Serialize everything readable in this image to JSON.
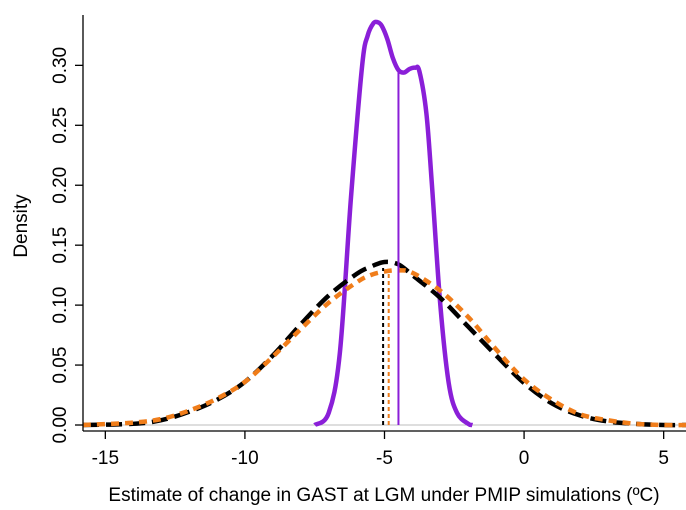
{
  "chart_data": {
    "type": "line",
    "xlabel": "Estimate of change in GAST at LGM under PMIP simulations (ºC)",
    "ylabel": "Density",
    "xlim": [
      -15.8,
      5.8
    ],
    "ylim": [
      -0.005,
      0.342
    ],
    "x_ticks": [
      -15,
      -10,
      -5,
      0,
      5
    ],
    "x_tick_labels": [
      "-15",
      "-10",
      "-5",
      "0",
      "5"
    ],
    "y_ticks": [
      0.0,
      0.05,
      0.1,
      0.15,
      0.2,
      0.25,
      0.3
    ],
    "y_tick_labels": [
      "0.00",
      "0.05",
      "0.10",
      "0.15",
      "0.20",
      "0.25",
      "0.30"
    ],
    "grid": false,
    "legend": "none",
    "series": [
      {
        "color": "#8a1fd8",
        "style": "solid",
        "x": [
          -7.5,
          -7.0,
          -6.6,
          -6.2,
          -5.8,
          -5.6,
          -5.4,
          -5.25,
          -5.1,
          -4.9,
          -4.7,
          -4.5,
          -4.3,
          -4.1,
          -3.9,
          -3.75,
          -3.5,
          -3.3,
          -3.0,
          -2.7,
          -2.4,
          -2.0,
          -1.85
        ],
        "values": [
          0.0,
          0.01,
          0.06,
          0.19,
          0.3,
          0.325,
          0.335,
          0.336,
          0.333,
          0.322,
          0.306,
          0.296,
          0.294,
          0.297,
          0.298,
          0.295,
          0.26,
          0.2,
          0.1,
          0.035,
          0.01,
          0.001,
          0.0
        ]
      },
      {
        "color": "#000000",
        "style": "dashed",
        "x": [
          -15.8,
          -14.0,
          -13.0,
          -12.0,
          -11.0,
          -10.0,
          -9.0,
          -8.0,
          -7.0,
          -6.0,
          -5.5,
          -5.0,
          -4.5,
          -4.0,
          -3.0,
          -2.0,
          -1.0,
          0.0,
          1.0,
          2.0,
          3.0,
          4.0,
          5.0,
          5.8
        ],
        "values": [
          0.0,
          0.001,
          0.004,
          0.011,
          0.021,
          0.036,
          0.058,
          0.084,
          0.108,
          0.126,
          0.132,
          0.136,
          0.134,
          0.125,
          0.106,
          0.082,
          0.058,
          0.035,
          0.018,
          0.008,
          0.003,
          0.001,
          0.0,
          0.0
        ]
      },
      {
        "color": "#f07d1a",
        "style": "dashed",
        "x": [
          -15.8,
          -14.0,
          -13.0,
          -12.0,
          -11.0,
          -10.0,
          -9.0,
          -8.0,
          -7.0,
          -6.0,
          -5.5,
          -5.0,
          -4.5,
          -4.0,
          -3.0,
          -2.0,
          -1.0,
          0.0,
          1.0,
          2.0,
          3.0,
          4.0,
          5.0,
          5.8
        ],
        "values": [
          0.0,
          0.002,
          0.005,
          0.012,
          0.022,
          0.036,
          0.057,
          0.08,
          0.102,
          0.119,
          0.125,
          0.128,
          0.129,
          0.127,
          0.112,
          0.09,
          0.063,
          0.038,
          0.021,
          0.009,
          0.004,
          0.001,
          0.0,
          0.0
        ]
      }
    ],
    "vertical_lines": [
      {
        "x": -4.5,
        "y": 0.296,
        "color": "#8a1fd8",
        "style": "solid"
      },
      {
        "x": -5.05,
        "y": 0.131,
        "color": "#000000",
        "style": "dashed"
      },
      {
        "x": -4.85,
        "y": 0.128,
        "color": "#f07d1a",
        "style": "dashed"
      }
    ],
    "baseline": 0.0
  }
}
